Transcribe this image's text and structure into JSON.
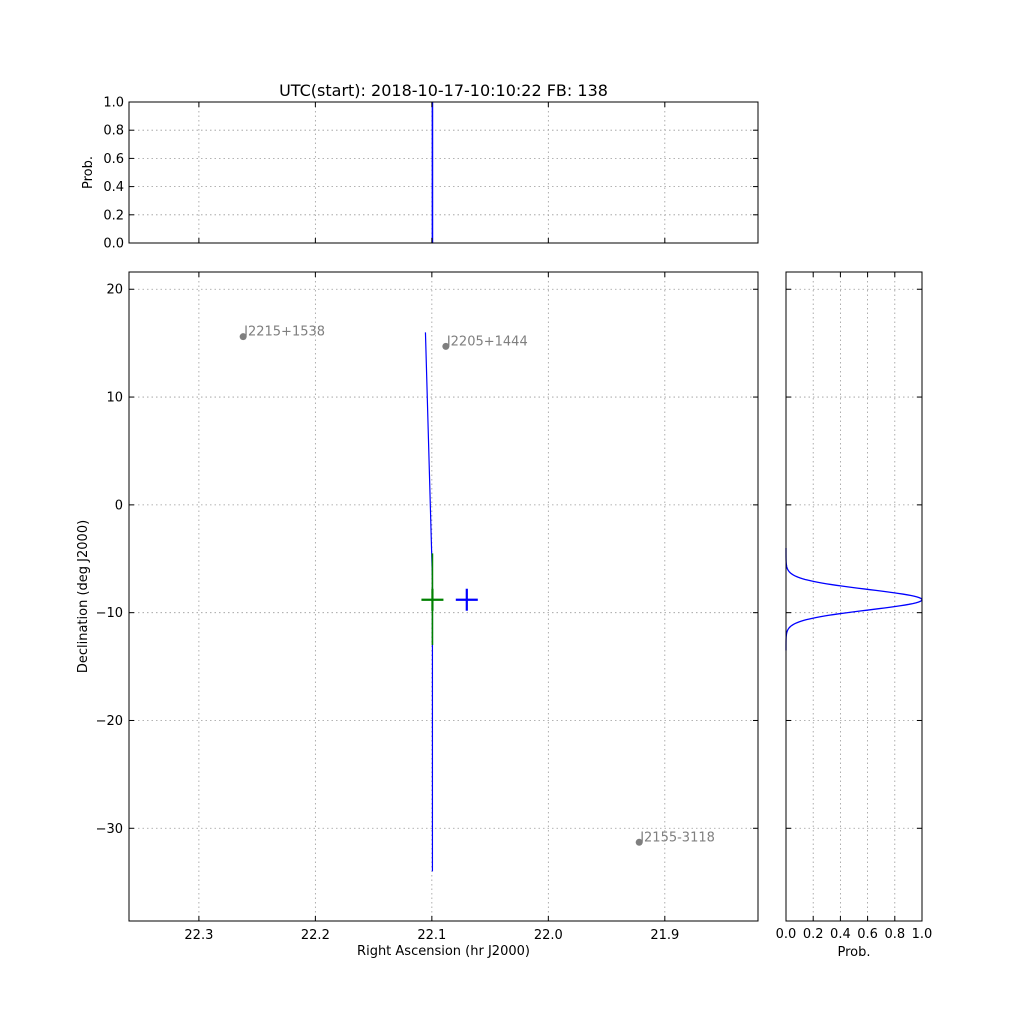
{
  "chart_data": [
    {
      "id": "top",
      "type": "line",
      "title": "UTC(start): 2018-10-17-10:10:22   FB: 138",
      "ylabel": "Prob.",
      "xlim": [
        22.36,
        21.82
      ],
      "ylim": [
        0.0,
        1.0
      ],
      "x_ticks": [
        22.3,
        22.2,
        22.1,
        22.0,
        21.9
      ],
      "y_ticks": [
        {
          "v": 0.0,
          "label": "0.0"
        },
        {
          "v": 0.2,
          "label": "0.2"
        },
        {
          "v": 0.4,
          "label": "0.4"
        },
        {
          "v": 0.6,
          "label": "0.6"
        },
        {
          "v": 0.8,
          "label": "0.8"
        },
        {
          "v": 1.0,
          "label": "1.0"
        }
      ],
      "grid": true,
      "series": [
        {
          "color": "#0000ff",
          "x": [
            22.0995,
            22.0995
          ],
          "y": [
            0.0,
            1.0
          ]
        }
      ]
    },
    {
      "id": "main",
      "type": "scatter",
      "xlabel": "Right Ascension (hr J2000)",
      "ylabel": "Declination (deg J2000)",
      "xlim": [
        22.36,
        21.82
      ],
      "ylim": [
        -38.6,
        21.6
      ],
      "x_ticks": [
        {
          "v": 22.3,
          "label": "22.3"
        },
        {
          "v": 22.2,
          "label": "22.2"
        },
        {
          "v": 22.1,
          "label": "22.1"
        },
        {
          "v": 22.0,
          "label": "22.0"
        },
        {
          "v": 21.9,
          "label": "21.9"
        }
      ],
      "y_ticks": [
        {
          "v": 20,
          "label": "20"
        },
        {
          "v": 10,
          "label": "10"
        },
        {
          "v": 0,
          "label": "0"
        },
        {
          "v": -10,
          "label": "−10"
        },
        {
          "v": -20,
          "label": "−20"
        },
        {
          "v": -30,
          "label": "−30"
        }
      ],
      "grid": true,
      "series": [
        {
          "color": "#0000ff",
          "x": [
            22.1055,
            22.0995,
            22.0995
          ],
          "y": [
            16.0,
            -7.0,
            -34.0
          ]
        },
        {
          "color": "#008000",
          "x": [
            22.0995,
            22.0995
          ],
          "y": [
            -4.5,
            -13.0
          ]
        }
      ],
      "markers": [
        {
          "color": "#008000",
          "x": 22.0995,
          "y": -8.8,
          "shape": "plus"
        },
        {
          "color": "#0000ff",
          "x": 22.07,
          "y": -8.8,
          "shape": "plus"
        }
      ],
      "sources": [
        {
          "name": "J2215+1538",
          "x": 22.262,
          "y": 15.6
        },
        {
          "name": "J2205+1444",
          "x": 22.088,
          "y": 14.7
        },
        {
          "name": "J2155-3118",
          "x": 21.922,
          "y": -31.3
        }
      ]
    },
    {
      "id": "right",
      "type": "line",
      "xlabel": "Prob.",
      "xlim": [
        0.0,
        1.0
      ],
      "ylim": [
        -38.6,
        21.6
      ],
      "x_ticks": [
        {
          "v": 0.0,
          "label": "0.0"
        },
        {
          "v": 0.2,
          "label": "0.2"
        },
        {
          "v": 0.4,
          "label": "0.4"
        },
        {
          "v": 0.6,
          "label": "0.6"
        },
        {
          "v": 0.8,
          "label": "0.8"
        },
        {
          "v": 1.0,
          "label": "1.0"
        }
      ],
      "y_ticks": [
        20,
        10,
        0,
        -10,
        -20,
        -30
      ],
      "grid": true,
      "series": [
        {
          "color": "#0000ff",
          "profile": "gaussian",
          "peak_dec": -8.8,
          "sigma_deg": 0.95,
          "dec_range": [
            -13.5,
            -4.0
          ]
        }
      ]
    }
  ]
}
